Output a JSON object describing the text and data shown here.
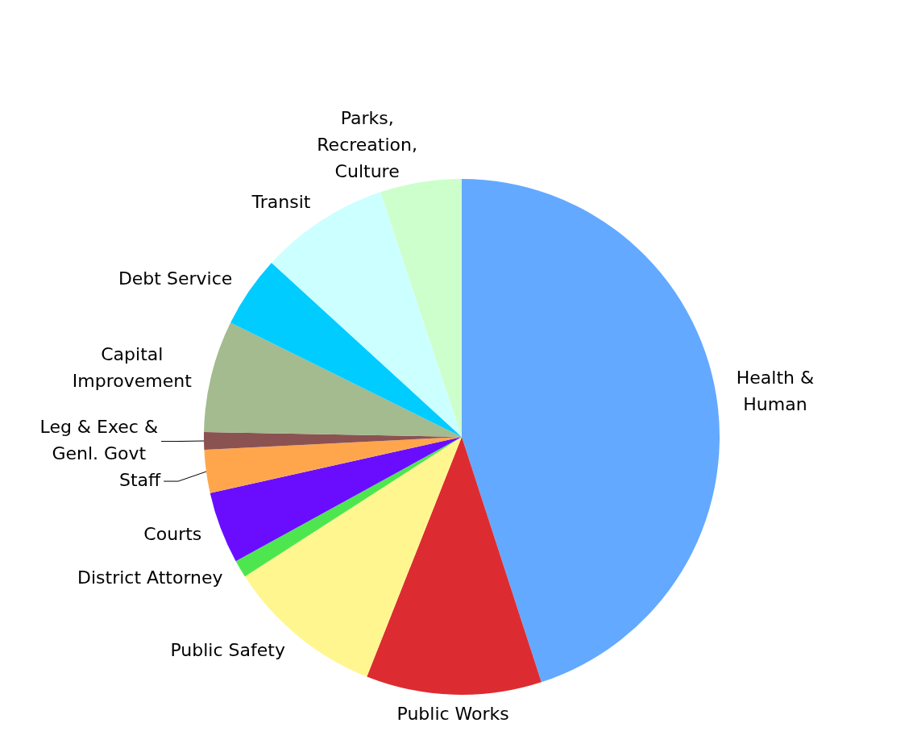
{
  "chart_data": {
    "type": "pie",
    "categories": [
      "Health &\nHuman",
      "Public Works",
      "Public Safety",
      "District Attorney",
      "Courts",
      "Staff",
      "Leg & Exec &\nGenl. Govt",
      "Capital\nImprovement",
      "Debt Service",
      "Transit",
      "Parks,\nRecreation,\nCulture"
    ],
    "values": [
      45.0,
      11.0,
      9.9,
      1.1,
      4.5,
      2.7,
      1.1,
      7.0,
      4.5,
      8.1,
      5.1
    ],
    "colors": [
      "#63a9ff",
      "#dd2c31",
      "#fff68f",
      "#4ee64e",
      "#6a0dff",
      "#ffa64d",
      "#8b5252",
      "#a3bb8f",
      "#00ccff",
      "#ccffff",
      "#ccffcc"
    ]
  }
}
